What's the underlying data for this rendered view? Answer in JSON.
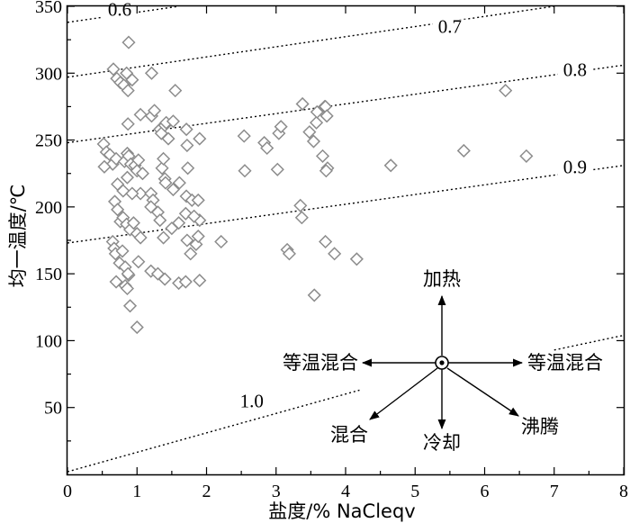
{
  "chart_data": {
    "type": "scatter",
    "xlabel": "盐度/%   NaCleqv",
    "ylabel": "均一温度/℃",
    "xlim": [
      0,
      8
    ],
    "ylim": [
      0,
      350
    ],
    "x_ticks": [
      "0",
      "1",
      "2",
      "3",
      "4",
      "5",
      "6",
      "7",
      "8"
    ],
    "y_ticks": [
      "50",
      "100",
      "150",
      "200",
      "250",
      "300",
      "350"
    ],
    "grid": false,
    "isolines": [
      {
        "label": "0.6",
        "points": [
          [
            0,
            338
          ],
          [
            1.6,
            350
          ]
        ],
        "label_at": [
          0.75,
          343
        ]
      },
      {
        "label": "0.7",
        "points": [
          [
            0,
            297
          ],
          [
            7,
            350
          ]
        ],
        "label_at": [
          5.5,
          330
        ]
      },
      {
        "label": "0.8",
        "points": [
          [
            0,
            248
          ],
          [
            8,
            306
          ]
        ],
        "label_at": [
          7.3,
          298
        ]
      },
      {
        "label": "0.9",
        "points": [
          [
            0,
            173
          ],
          [
            8,
            231
          ]
        ],
        "label_at": [
          7.3,
          225
        ]
      },
      {
        "label": "1.0",
        "points": [
          [
            0,
            2
          ],
          [
            4.2,
            63
          ]
        ],
        "label_at": [
          2.65,
          50
        ]
      },
      {
        "points": [
          [
            7,
            93
          ],
          [
            8,
            104
          ]
        ]
      }
    ],
    "series": [
      {
        "marker": "diamond",
        "x": [
          0.88,
          0.66,
          0.71,
          0.76,
          0.85,
          0.81,
          0.87,
          0.93,
          1.21,
          1.55,
          1.05,
          0.87,
          1.21,
          1.25,
          1.33,
          1.35,
          1.4,
          1.42,
          1.45,
          1.52,
          1.71,
          1.9,
          1.72,
          0.52,
          0.56,
          0.61,
          0.65,
          0.53,
          0.7,
          0.82,
          0.86,
          0.88,
          0.91,
          0.97,
          1.0,
          1.02,
          1.08,
          1.05,
          0.72,
          0.8,
          0.86,
          0.93,
          1.2,
          1.23,
          1.36,
          1.38,
          1.4,
          1.41,
          1.52,
          1.61,
          1.73,
          1.71,
          1.79,
          1.88,
          1.9,
          0.68,
          0.72,
          0.76,
          0.8,
          0.85,
          0.9,
          0.95,
          1.0,
          1.05,
          1.2,
          1.3,
          1.33,
          1.38,
          1.5,
          1.6,
          1.7,
          1.72,
          1.82,
          1.85,
          1.88,
          0.65,
          0.67,
          0.69,
          0.75,
          0.79,
          0.83,
          0.88,
          1.02,
          1.2,
          1.3,
          1.4,
          1.6,
          1.7,
          1.77,
          1.9,
          0.83,
          0.86,
          0.9,
          1.0,
          0.7,
          0.87,
          2.54,
          2.55,
          2.83,
          2.87,
          3.04,
          3.07,
          3.02,
          3.38,
          3.48,
          3.54,
          3.58,
          3.59,
          3.7,
          3.71,
          3.73,
          3.74,
          3.67,
          3.72,
          3.35,
          3.37,
          3.16,
          3.19,
          3.84,
          3.71,
          3.55,
          4.16,
          4.65,
          5.7,
          6.3,
          6.6,
          2.21
        ],
        "y": [
          323,
          303,
          296,
          293,
          300,
          291,
          287,
          295,
          300,
          287,
          269,
          262,
          268,
          272,
          258,
          255,
          261,
          263,
          251,
          264,
          258,
          251,
          246,
          247,
          241,
          239,
          232,
          230,
          236,
          234,
          240,
          238,
          232,
          231,
          227,
          235,
          225,
          210,
          217,
          212,
          222,
          210,
          210,
          205,
          229,
          236,
          221,
          218,
          213,
          218,
          229,
          208,
          205,
          205,
          190,
          204,
          198,
          189,
          192,
          187,
          183,
          188,
          180,
          177,
          200,
          196,
          190,
          177,
          184,
          188,
          195,
          175,
          193,
          172,
          178,
          174,
          169,
          165,
          158,
          167,
          155,
          149,
          159,
          152,
          150,
          146,
          143,
          144,
          165,
          145,
          141,
          139,
          126,
          110,
          144,
          150,
          253,
          227,
          248,
          244,
          255,
          260,
          228,
          277,
          256,
          249,
          263,
          271,
          275,
          275,
          268,
          229,
          238,
          227,
          201,
          192,
          168,
          165,
          165,
          174,
          134,
          161,
          231,
          242,
          287,
          238,
          174
        ]
      }
    ],
    "diagram": {
      "heat": "加热",
      "isothermal_left": "等温混合",
      "isothermal_right": "等温混合",
      "mixing": "混合",
      "cooling": "冷却",
      "boiling": "沸腾"
    }
  }
}
